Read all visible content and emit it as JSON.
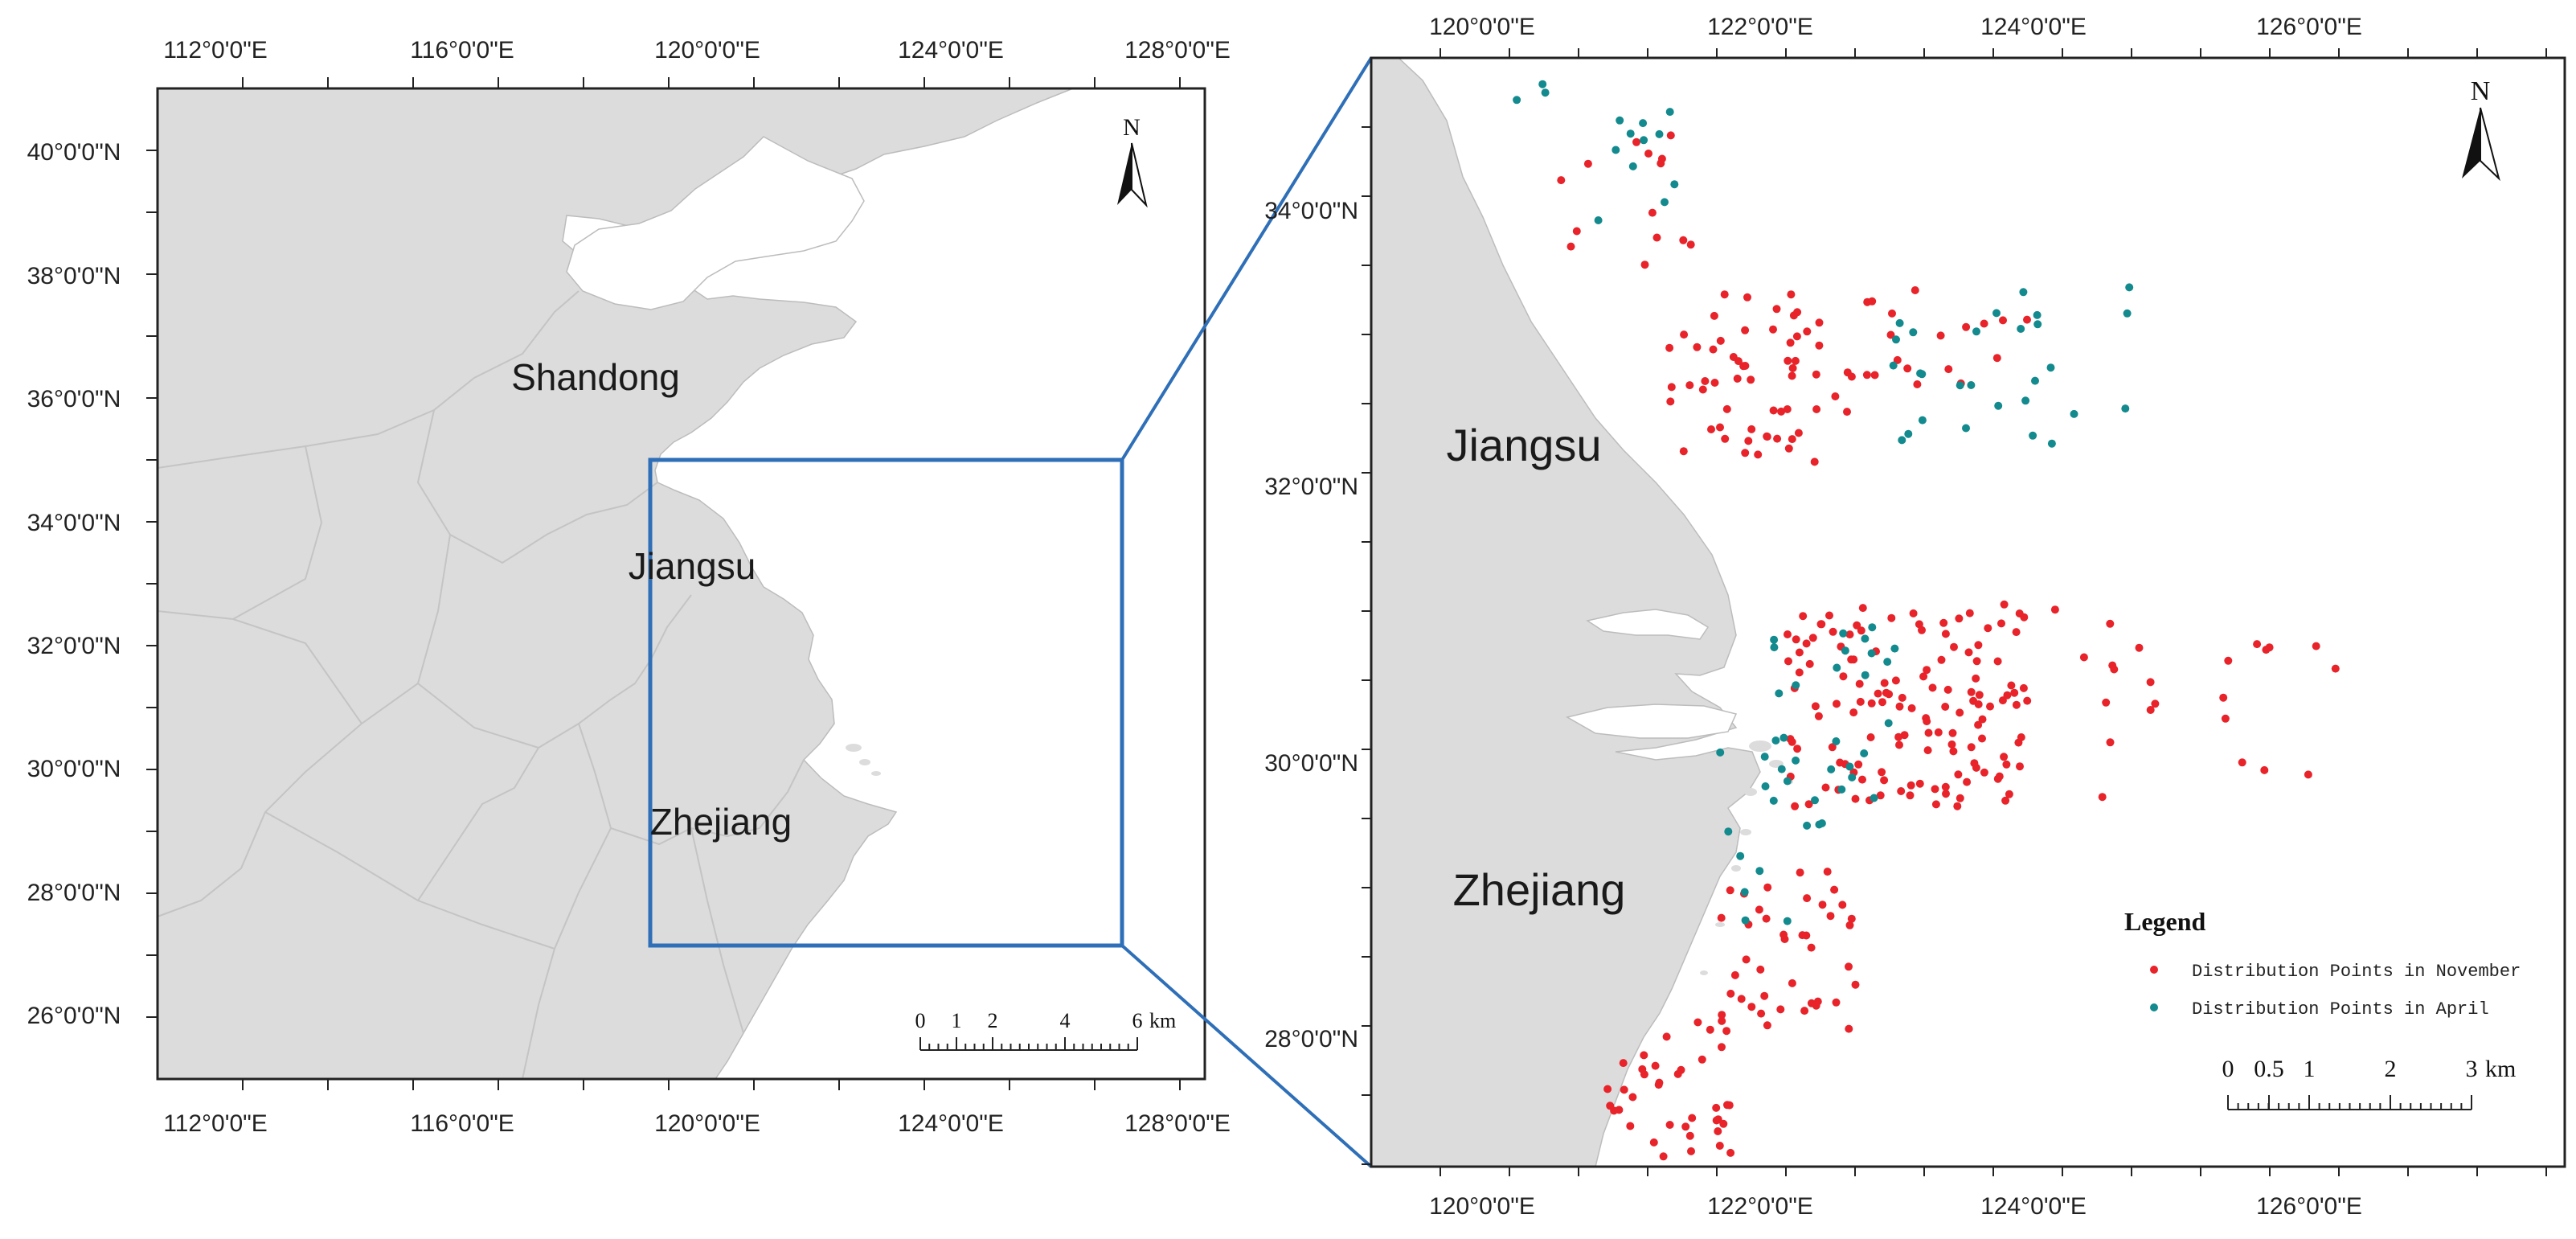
{
  "colors": {
    "land": "#dcdcdc",
    "sea": "#ffffff",
    "border": "#c4c4c4",
    "frame": "#222222",
    "extent_box": "#2e6fb8",
    "november": "#e8232a",
    "april": "#138a8e"
  },
  "overview": {
    "lon_labels": [
      "112°0'0\"E",
      "116°0'0\"E",
      "120°0'0\"E",
      "124°0'0\"E",
      "128°0'0\"E"
    ],
    "lat_labels": [
      "40°0'0\"N",
      "38°0'0\"N",
      "36°0'0\"N",
      "34°0'0\"N",
      "32°0'0\"N",
      "30°0'0\"N",
      "28°0'0\"N",
      "26°0'0\"N"
    ],
    "provinces": [
      "Shandong",
      "Jiangsu",
      "Zhejiang"
    ],
    "north_label": "N",
    "scale": {
      "ticks": [
        "0",
        "1",
        "2",
        "4",
        "6"
      ],
      "unit": "km"
    }
  },
  "detail": {
    "lon_labels": [
      "120°0'0\"E",
      "122°0'0\"E",
      "124°0'0\"E",
      "126°0'0\"E"
    ],
    "lat_labels": [
      "34°0'0\"N",
      "32°0'0\"N",
      "30°0'0\"N",
      "28°0'0\"N"
    ],
    "provinces": [
      "Jiangsu",
      "Zhejiang"
    ],
    "north_label": "N",
    "legend": {
      "title": "Legend",
      "items": [
        "Distribution Points in November",
        "Distribution Points in April"
      ]
    },
    "scale": {
      "ticks": [
        "0",
        "0.5",
        "1",
        "2",
        "3"
      ],
      "unit": "km"
    }
  },
  "icons": [
    "north-arrow-icon",
    "north-arrow-icon-detail"
  ]
}
